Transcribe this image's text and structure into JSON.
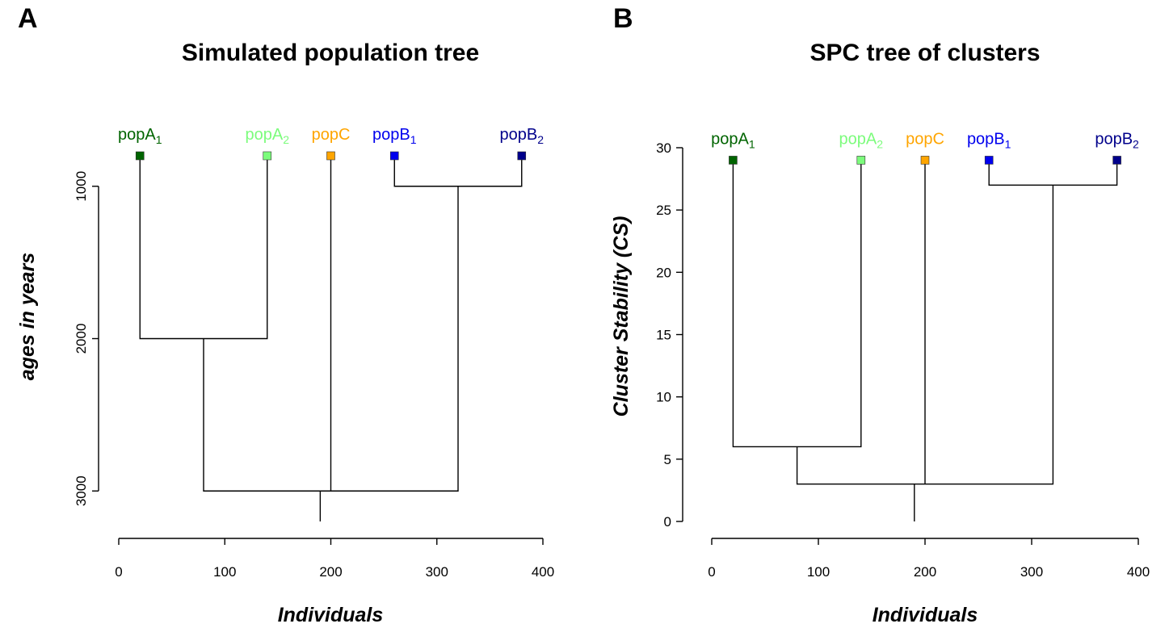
{
  "chart_data": [
    {
      "panel": "A",
      "type": "dendrogram",
      "title": "Simulated population tree",
      "xlabel": "Individuals",
      "ylabel": "ages in years",
      "y_reversed": true,
      "xlim": [
        0,
        400
      ],
      "x_ticks": [
        0,
        100,
        200,
        300,
        400
      ],
      "ylim": [
        3200,
        800
      ],
      "y_ticks": [
        1000,
        2000,
        3000
      ],
      "y_tick_rotation": "vertical",
      "leaves": [
        {
          "label": "popA",
          "sub": "1",
          "x": 20,
          "y": 800,
          "color": "#006400"
        },
        {
          "label": "popA",
          "sub": "2",
          "x": 140,
          "y": 800,
          "color": "#7CFC7C"
        },
        {
          "label": "popC",
          "sub": "",
          "x": 200,
          "y": 800,
          "color": "#FFA500"
        },
        {
          "label": "popB",
          "sub": "1",
          "x": 260,
          "y": 800,
          "color": "#0000EE"
        },
        {
          "label": "popB",
          "sub": "2",
          "x": 380,
          "y": 800,
          "color": "#00008B"
        }
      ],
      "merges": [
        {
          "left": [
            20,
            800
          ],
          "right": [
            140,
            800
          ],
          "height": 2000,
          "parent_x": 80
        },
        {
          "left": [
            260,
            800
          ],
          "right": [
            380,
            800
          ],
          "height": 1000,
          "parent_x": 320
        },
        {
          "left": [
            80,
            2000
          ],
          "right": [
            320,
            1000
          ],
          "height": 3000,
          "parent_x": 190
        },
        {
          "branch": [
            200,
            800
          ],
          "joins_at": 3000
        }
      ],
      "root": {
        "x": 190,
        "from": 3000,
        "to": 3200
      }
    },
    {
      "panel": "B",
      "type": "dendrogram",
      "title": "SPC tree of clusters",
      "xlabel": "Individuals",
      "ylabel": "Cluster Stability (CS)",
      "y_reversed": false,
      "xlim": [
        0,
        400
      ],
      "x_ticks": [
        0,
        100,
        200,
        300,
        400
      ],
      "ylim": [
        0,
        30
      ],
      "y_ticks": [
        0,
        5,
        10,
        15,
        20,
        25,
        30
      ],
      "y_tick_rotation": "horizontal",
      "leaves": [
        {
          "label": "popA",
          "sub": "1",
          "x": 20,
          "y": 29,
          "color": "#006400"
        },
        {
          "label": "popA",
          "sub": "2",
          "x": 140,
          "y": 29,
          "color": "#7CFC7C"
        },
        {
          "label": "popC",
          "sub": "",
          "x": 200,
          "y": 29,
          "color": "#FFA500"
        },
        {
          "label": "popB",
          "sub": "1",
          "x": 260,
          "y": 29,
          "color": "#0000EE"
        },
        {
          "label": "popB",
          "sub": "2",
          "x": 380,
          "y": 29,
          "color": "#00008B"
        }
      ],
      "merges": [
        {
          "left": [
            20,
            29
          ],
          "right": [
            140,
            29
          ],
          "height": 6,
          "parent_x": 80
        },
        {
          "left": [
            260,
            29
          ],
          "right": [
            380,
            29
          ],
          "height": 27,
          "parent_x": 320
        },
        {
          "left": [
            80,
            6
          ],
          "right": [
            320,
            27
          ],
          "height": 3,
          "parent_x": 190
        },
        {
          "branch": [
            200,
            29
          ],
          "joins_at": 3
        }
      ],
      "root": {
        "x": 190,
        "from": 3,
        "to": 0
      }
    }
  ]
}
